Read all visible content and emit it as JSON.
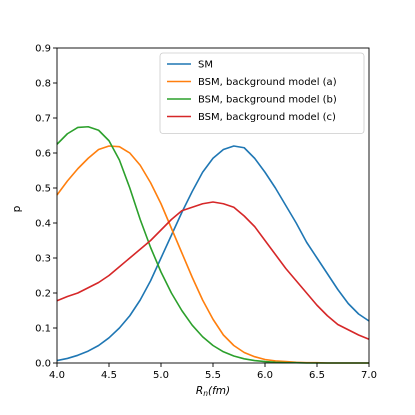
{
  "chart_data": {
    "type": "line",
    "title": "",
    "xlabel_main": "R",
    "xlabel_sub": "n",
    "xlabel_unit": "(fm)",
    "ylabel": "p",
    "xlim": [
      4.0,
      7.0
    ],
    "ylim": [
      0.0,
      0.9
    ],
    "xticks": [
      "4.0",
      "4.5",
      "5.0",
      "5.5",
      "6.0",
      "6.5",
      "7.0"
    ],
    "yticks": [
      "0.0",
      "0.1",
      "0.2",
      "0.3",
      "0.4",
      "0.5",
      "0.6",
      "0.7",
      "0.8",
      "0.9"
    ],
    "grid": false,
    "legend_position": "top-right",
    "series": [
      {
        "name": "SM",
        "color": "#1f77b4",
        "x": [
          4.0,
          4.1,
          4.2,
          4.3,
          4.4,
          4.5,
          4.6,
          4.7,
          4.8,
          4.9,
          5.0,
          5.1,
          5.2,
          5.3,
          5.4,
          5.5,
          5.6,
          5.7,
          5.8,
          5.9,
          6.0,
          6.1,
          6.2,
          6.3,
          6.4,
          6.5,
          6.6,
          6.7,
          6.8,
          6.9,
          7.0
        ],
        "y": [
          0.007,
          0.013,
          0.022,
          0.034,
          0.05,
          0.072,
          0.1,
          0.135,
          0.18,
          0.235,
          0.3,
          0.365,
          0.43,
          0.49,
          0.545,
          0.585,
          0.61,
          0.62,
          0.615,
          0.585,
          0.545,
          0.5,
          0.45,
          0.4,
          0.345,
          0.3,
          0.255,
          0.21,
          0.17,
          0.14,
          0.12
        ]
      },
      {
        "name": "BSM, background model (a)",
        "color": "#ff7f0e",
        "x": [
          4.0,
          4.1,
          4.2,
          4.3,
          4.4,
          4.5,
          4.6,
          4.7,
          4.8,
          4.9,
          5.0,
          5.1,
          5.2,
          5.3,
          5.4,
          5.5,
          5.6,
          5.7,
          5.8,
          5.9,
          6.0,
          6.1,
          6.2,
          6.3,
          6.4,
          6.5,
          6.6,
          6.7,
          6.8,
          6.9,
          7.0
        ],
        "y": [
          0.48,
          0.52,
          0.555,
          0.585,
          0.61,
          0.62,
          0.618,
          0.6,
          0.565,
          0.515,
          0.455,
          0.385,
          0.315,
          0.245,
          0.18,
          0.125,
          0.08,
          0.05,
          0.03,
          0.018,
          0.01,
          0.006,
          0.004,
          0.002,
          0.001,
          0.001,
          0.0,
          0.0,
          0.0,
          0.0,
          0.0
        ]
      },
      {
        "name": "BSM, background model (b)",
        "color": "#2ca02c",
        "x": [
          4.0,
          4.1,
          4.2,
          4.3,
          4.4,
          4.5,
          4.6,
          4.7,
          4.8,
          4.9,
          5.0,
          5.1,
          5.2,
          5.3,
          5.4,
          5.5,
          5.6,
          5.7,
          5.8,
          5.9,
          6.0,
          6.1,
          6.2,
          6.3,
          6.4,
          6.5,
          6.6,
          6.7,
          6.8,
          6.9,
          7.0
        ],
        "y": [
          0.625,
          0.655,
          0.673,
          0.675,
          0.665,
          0.635,
          0.58,
          0.5,
          0.41,
          0.33,
          0.26,
          0.2,
          0.15,
          0.108,
          0.075,
          0.05,
          0.032,
          0.02,
          0.012,
          0.007,
          0.004,
          0.002,
          0.001,
          0.001,
          0.0,
          0.0,
          0.0,
          0.0,
          0.0,
          0.0,
          0.0
        ]
      },
      {
        "name": "BSM, background model (c)",
        "color": "#d62728",
        "x": [
          4.0,
          4.1,
          4.2,
          4.3,
          4.4,
          4.5,
          4.6,
          4.7,
          4.8,
          4.9,
          5.0,
          5.1,
          5.2,
          5.3,
          5.4,
          5.5,
          5.6,
          5.7,
          5.8,
          5.9,
          6.0,
          6.1,
          6.2,
          6.3,
          6.4,
          6.5,
          6.6,
          6.7,
          6.8,
          6.9,
          7.0
        ],
        "y": [
          0.178,
          0.19,
          0.2,
          0.215,
          0.23,
          0.25,
          0.275,
          0.3,
          0.325,
          0.35,
          0.38,
          0.41,
          0.435,
          0.445,
          0.455,
          0.46,
          0.455,
          0.445,
          0.42,
          0.39,
          0.35,
          0.31,
          0.27,
          0.235,
          0.2,
          0.165,
          0.135,
          0.11,
          0.095,
          0.08,
          0.068
        ]
      }
    ]
  }
}
